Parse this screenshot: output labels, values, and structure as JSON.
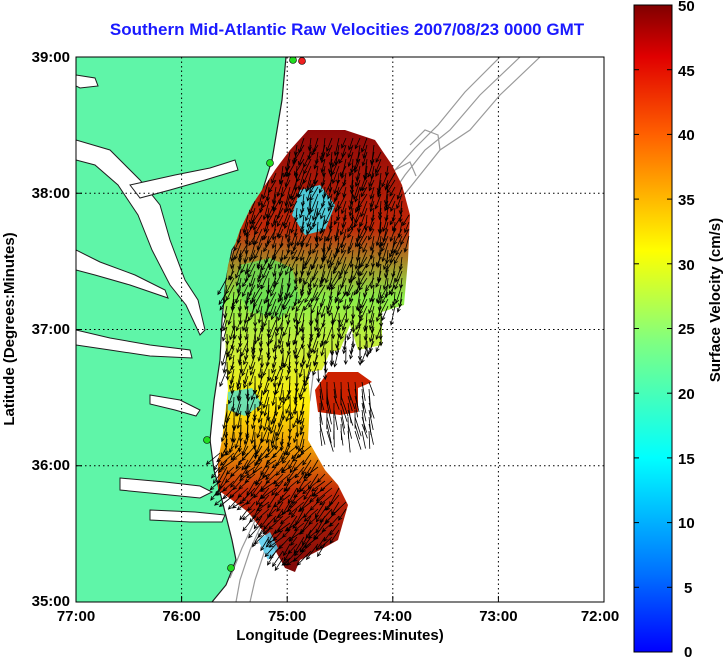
{
  "title": "Southern Mid-Atlantic Raw Velocities 2007/08/23 0000 GMT",
  "axes": {
    "xlabel": "Longitude (Degrees:Minutes)",
    "ylabel": "Latitude (Degrees:Minutes)",
    "xticks": [
      "77:00",
      "76:00",
      "75:00",
      "74:00",
      "73:00",
      "72:00"
    ],
    "yticks": [
      "39:00",
      "38:00",
      "37:00",
      "36:00",
      "35:00"
    ],
    "xlim": [
      -77,
      -72
    ],
    "ylim": [
      35,
      39
    ]
  },
  "colorbar": {
    "label": "Surface Velocity (cm/s)",
    "ticks": [
      "50",
      "45",
      "40",
      "35",
      "30",
      "25",
      "20",
      "15",
      "10",
      "5",
      "0"
    ],
    "range": [
      0,
      50
    ],
    "colormap": "jet"
  },
  "colors": {
    "land": "#5ff5a8",
    "coast": "#1f1f1f",
    "bathymetry": "#9a9a9a",
    "title": "#1a1aff",
    "station_green": "#22dd22",
    "station_red": "#ee2020"
  }
}
